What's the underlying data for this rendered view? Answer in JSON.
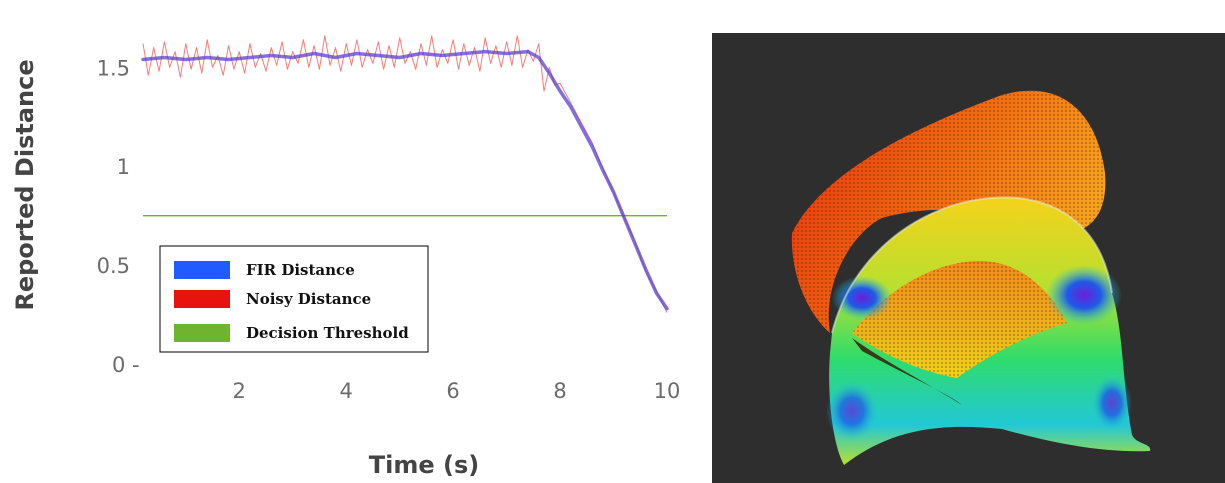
{
  "chart_data": {
    "type": "line",
    "xlabel": "Time (s)",
    "ylabel": "Reported Distance",
    "xlim": [
      0.2,
      10
    ],
    "ylim": [
      0,
      1.78
    ],
    "xticks": [
      {
        "value": 2,
        "label": "2"
      },
      {
        "value": 4,
        "label": "4"
      },
      {
        "value": 6,
        "label": "6"
      },
      {
        "value": 8,
        "label": "8"
      },
      {
        "value": 10,
        "label": "10"
      }
    ],
    "yticks": [
      {
        "value": 1.5,
        "label": "1.5"
      },
      {
        "value": 1,
        "label": "1"
      },
      {
        "value": 0.5,
        "label": "0.5"
      },
      {
        "value": 0,
        "label": "0 -"
      }
    ],
    "legend_position": "lower-left",
    "series": [
      {
        "name": "FIR Distance",
        "color": "#1f5bff",
        "x": [
          0.2,
          0.6,
          1.0,
          1.4,
          1.8,
          2.2,
          2.6,
          3.0,
          3.4,
          3.8,
          4.2,
          4.6,
          5.0,
          5.4,
          5.8,
          6.2,
          6.6,
          7.0,
          7.4,
          7.6,
          7.8,
          8.0,
          8.2,
          8.4,
          8.6,
          8.8,
          9.0,
          9.2,
          9.4,
          9.6,
          9.8,
          10.0
        ],
        "y": [
          1.54,
          1.55,
          1.54,
          1.55,
          1.54,
          1.55,
          1.56,
          1.55,
          1.57,
          1.55,
          1.57,
          1.56,
          1.55,
          1.57,
          1.56,
          1.57,
          1.58,
          1.57,
          1.58,
          1.55,
          1.47,
          1.38,
          1.3,
          1.2,
          1.1,
          0.98,
          0.87,
          0.74,
          0.61,
          0.48,
          0.36,
          0.28
        ]
      },
      {
        "name": "Noisy Distance",
        "color": "#e8130f",
        "x": [
          0.2,
          0.3,
          0.4,
          0.5,
          0.6,
          0.7,
          0.8,
          0.9,
          1.0,
          1.1,
          1.2,
          1.3,
          1.4,
          1.5,
          1.6,
          1.7,
          1.8,
          1.9,
          2.0,
          2.1,
          2.2,
          2.3,
          2.4,
          2.5,
          2.6,
          2.7,
          2.8,
          2.9,
          3.0,
          3.1,
          3.2,
          3.3,
          3.4,
          3.5,
          3.6,
          3.7,
          3.8,
          3.9,
          4.0,
          4.1,
          4.2,
          4.3,
          4.4,
          4.5,
          4.6,
          4.7,
          4.8,
          4.9,
          5.0,
          5.1,
          5.2,
          5.3,
          5.4,
          5.5,
          5.6,
          5.7,
          5.8,
          5.9,
          6.0,
          6.1,
          6.2,
          6.3,
          6.4,
          6.5,
          6.6,
          6.7,
          6.8,
          6.9,
          7.0,
          7.1,
          7.2,
          7.3,
          7.4,
          7.5,
          7.6,
          7.7,
          7.8,
          7.9,
          8.0,
          8.2,
          8.4,
          8.6,
          8.8,
          9.0,
          9.2,
          9.4,
          9.6,
          9.8,
          10.0
        ],
        "y": [
          1.62,
          1.46,
          1.6,
          1.48,
          1.63,
          1.5,
          1.58,
          1.45,
          1.62,
          1.49,
          1.6,
          1.47,
          1.64,
          1.5,
          1.56,
          1.46,
          1.61,
          1.49,
          1.58,
          1.47,
          1.62,
          1.5,
          1.57,
          1.48,
          1.6,
          1.51,
          1.63,
          1.49,
          1.58,
          1.52,
          1.64,
          1.5,
          1.61,
          1.49,
          1.66,
          1.51,
          1.6,
          1.48,
          1.62,
          1.51,
          1.64,
          1.5,
          1.59,
          1.52,
          1.63,
          1.49,
          1.61,
          1.5,
          1.65,
          1.52,
          1.58,
          1.49,
          1.62,
          1.51,
          1.66,
          1.5,
          1.59,
          1.52,
          1.64,
          1.49,
          1.62,
          1.51,
          1.6,
          1.48,
          1.65,
          1.52,
          1.61,
          1.5,
          1.63,
          1.51,
          1.66,
          1.5,
          1.59,
          1.53,
          1.62,
          1.38,
          1.5,
          1.41,
          1.42,
          1.32,
          1.22,
          1.12,
          0.99,
          0.87,
          0.74,
          0.62,
          0.47,
          0.37,
          0.26
        ]
      },
      {
        "name": "Decision Threshold",
        "color": "#6fb32e",
        "x": [
          0.2,
          10.0
        ],
        "y": [
          0.75,
          0.75
        ]
      }
    ]
  },
  "render_panel": {
    "background": "#2e2e2e",
    "palette": [
      "#e8300e",
      "#f7941d",
      "#f0d21a",
      "#9bd92c",
      "#27d96a",
      "#1fc7d8",
      "#1e5ae8",
      "#6b1fd8"
    ]
  }
}
